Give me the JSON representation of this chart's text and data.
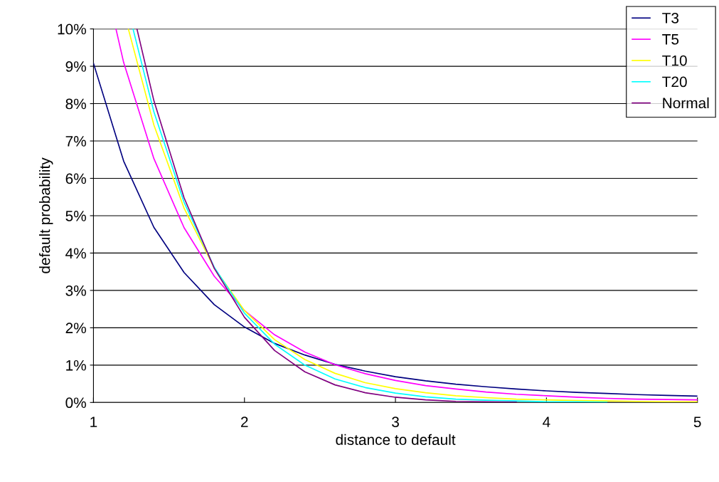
{
  "chart_data": {
    "type": "line",
    "xlabel": "distance to default",
    "ylabel": "default probability",
    "xlim": [
      1,
      5
    ],
    "xticks": [
      1,
      2,
      3,
      4,
      5
    ],
    "ylim": [
      0,
      0.1
    ],
    "yticks": [
      {
        "value": 0,
        "label": "0%"
      },
      {
        "value": 0.01,
        "label": "1%"
      },
      {
        "value": 0.02,
        "label": "2%"
      },
      {
        "value": 0.03,
        "label": "3%"
      },
      {
        "value": 0.04,
        "label": "4%"
      },
      {
        "value": 0.05,
        "label": "5%"
      },
      {
        "value": 0.06,
        "label": "6%"
      },
      {
        "value": 0.07,
        "label": "7%"
      },
      {
        "value": 0.08,
        "label": "8%"
      },
      {
        "value": 0.09,
        "label": "9%"
      },
      {
        "value": 0.1,
        "label": "10%"
      }
    ],
    "grid": "y",
    "legend": "top right",
    "marker": "none",
    "line_style": "solid",
    "series": [
      {
        "name": "T3",
        "color": "#000080",
        "x": [
          1,
          1.2,
          1.4,
          1.6,
          1.8,
          2,
          2.2,
          2.4,
          2.6,
          2.8,
          3,
          3.2,
          3.4,
          3.6,
          3.8,
          4,
          4.2,
          4.4,
          4.6,
          4.8,
          5
        ],
        "values": [
          0.0908,
          0.0646,
          0.0469,
          0.0348,
          0.0262,
          0.0202,
          0.0158,
          0.0127,
          0.0102,
          0.0084,
          0.0069,
          0.0058,
          0.0049,
          0.0042,
          0.0036,
          0.0031,
          0.0027,
          0.0024,
          0.0021,
          0.0019,
          0.0017
        ]
      },
      {
        "name": "T5",
        "color": "#ff00ff",
        "x": [
          1.149,
          1.2,
          1.4,
          1.6,
          1.8,
          2,
          2.2,
          2.4,
          2.6,
          2.8,
          3,
          3.2,
          3.4,
          3.6,
          3.8,
          4,
          4.2,
          4.4,
          4.6,
          4.8,
          5
        ],
        "values": [
          0.1,
          0.091,
          0.0653,
          0.0468,
          0.0338,
          0.0246,
          0.0181,
          0.0135,
          0.0101,
          0.0077,
          0.0059,
          0.0045,
          0.0036,
          0.0028,
          0.0022,
          0.0018,
          0.0014,
          0.0011,
          0.0009,
          0.0008,
          0.0007
        ]
      },
      {
        "name": "T10",
        "color": "#ffff00",
        "x": [
          1.231,
          1.4,
          1.6,
          1.8,
          2,
          2.2,
          2.4,
          2.6,
          2.8,
          3,
          3.2,
          3.4,
          3.6,
          3.8,
          4,
          4.2,
          4.4,
          4.6,
          4.8,
          5
        ],
        "values": [
          0.1,
          0.0743,
          0.052,
          0.036,
          0.0246,
          0.0168,
          0.0115,
          0.0078,
          0.0053,
          0.0037,
          0.0026,
          0.0018,
          0.0013,
          0.0009,
          0.0007,
          0.0005,
          0.0004,
          0.0003,
          0.0002,
          0.0002
        ]
      },
      {
        "name": "T20",
        "color": "#00ffff",
        "x": [
          1.262,
          1.4,
          1.6,
          1.8,
          2,
          2.2,
          2.4,
          2.6,
          2.8,
          3,
          3.2,
          3.4,
          3.6,
          3.8,
          4,
          4.2,
          4.4
        ],
        "values": [
          0.1,
          0.0778,
          0.0536,
          0.0362,
          0.0239,
          0.0156,
          0.01,
          0.0063,
          0.004,
          0.0025,
          0.0015,
          0.0009,
          0.0006,
          0.0004,
          0.0002,
          0.0002,
          0.0001
        ]
      },
      {
        "name": "Normal",
        "color": "#800080",
        "x": [
          1.288,
          1.4,
          1.6,
          1.8,
          2,
          2.2,
          2.4,
          2.6,
          2.8,
          3,
          3.2,
          3.4,
          3.6,
          3.8
        ],
        "values": [
          0.1,
          0.0808,
          0.0548,
          0.0359,
          0.0228,
          0.0139,
          0.0082,
          0.0047,
          0.0026,
          0.0014,
          0.0007,
          0.0003,
          0.0002,
          0.0001
        ]
      }
    ]
  }
}
